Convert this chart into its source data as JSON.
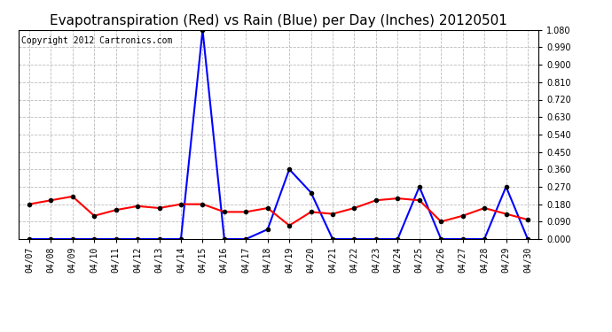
{
  "title": "Evapotranspiration (Red) vs Rain (Blue) per Day (Inches) 20120501",
  "copyright_text": "Copyright 2012 Cartronics.com",
  "dates": [
    "04/07",
    "04/08",
    "04/09",
    "04/10",
    "04/11",
    "04/12",
    "04/13",
    "04/14",
    "04/15",
    "04/16",
    "04/17",
    "04/18",
    "04/19",
    "04/20",
    "04/21",
    "04/22",
    "04/23",
    "04/24",
    "04/25",
    "04/26",
    "04/27",
    "04/28",
    "04/29",
    "04/30"
  ],
  "rain": [
    0.0,
    0.0,
    0.0,
    0.0,
    0.0,
    0.0,
    0.0,
    0.0,
    1.08,
    0.0,
    0.0,
    0.05,
    0.36,
    0.24,
    0.0,
    0.0,
    0.0,
    0.0,
    0.27,
    0.0,
    0.0,
    0.0,
    0.27,
    0.0
  ],
  "et": [
    0.18,
    0.2,
    0.22,
    0.12,
    0.15,
    0.17,
    0.16,
    0.18,
    0.18,
    0.14,
    0.14,
    0.16,
    0.07,
    0.14,
    0.13,
    0.16,
    0.2,
    0.21,
    0.2,
    0.09,
    0.12,
    0.16,
    0.13,
    0.1
  ],
  "rain_color": "#0000ff",
  "et_color": "#ff0000",
  "background_color": "#ffffff",
  "grid_color": "#bbbbbb",
  "ylim": [
    0.0,
    1.08
  ],
  "yticks": [
    0.0,
    0.09,
    0.18,
    0.27,
    0.36,
    0.45,
    0.54,
    0.63,
    0.72,
    0.81,
    0.9,
    0.99,
    1.08
  ],
  "title_fontsize": 11,
  "copyright_fontsize": 7,
  "tick_fontsize": 7,
  "marker": "o",
  "marker_size": 3,
  "linewidth": 1.5
}
